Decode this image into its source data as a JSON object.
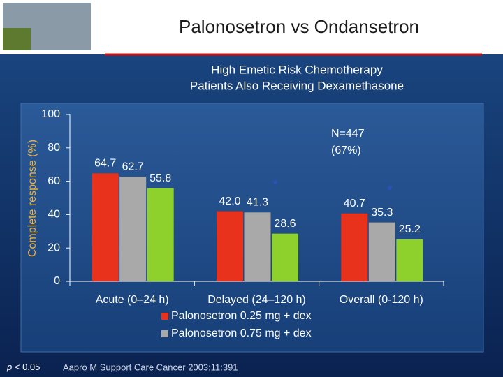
{
  "chart_data": {
    "type": "bar",
    "title": "Palonosetron vs Ondansetron",
    "subtitle": [
      "High Emetic Risk Chemotherapy",
      "Patients Also Receiving Dexamethasone"
    ],
    "y_label": "Complete response (%)",
    "categories": [
      "Acute (0–24 h)",
      "Delayed (24–120 h)",
      "Overall (0-120 h)"
    ],
    "series": [
      {
        "name": "Palonosetron 0.25 mg + dex",
        "color": "#e8321c",
        "values": [
          64.7,
          42.0,
          40.7
        ],
        "value_labels": [
          "64.7",
          "42.0",
          "40.7"
        ]
      },
      {
        "name": "Palonosetron 0.75 mg + dex",
        "color": "#a9a9a9",
        "values": [
          62.7,
          41.3,
          35.3
        ],
        "value_labels": [
          "62.7",
          "41.3",
          "35.3"
        ]
      },
      {
        "color": "#8fd12c",
        "values": [
          55.8,
          28.6,
          25.2
        ],
        "value_labels": [
          "55.8",
          "28.6",
          "25.2"
        ]
      }
    ],
    "ylim": [
      0,
      100
    ],
    "yticks": [
      0,
      20,
      40,
      60,
      80,
      100
    ],
    "grid": false,
    "annotations": [
      "N=447",
      "(67%)",
      "*",
      "*"
    ],
    "footnote": {
      "symbol": "p",
      "text": "< 0.05"
    },
    "source": "Aapro M Support Care Cancer 2003:11:391"
  }
}
